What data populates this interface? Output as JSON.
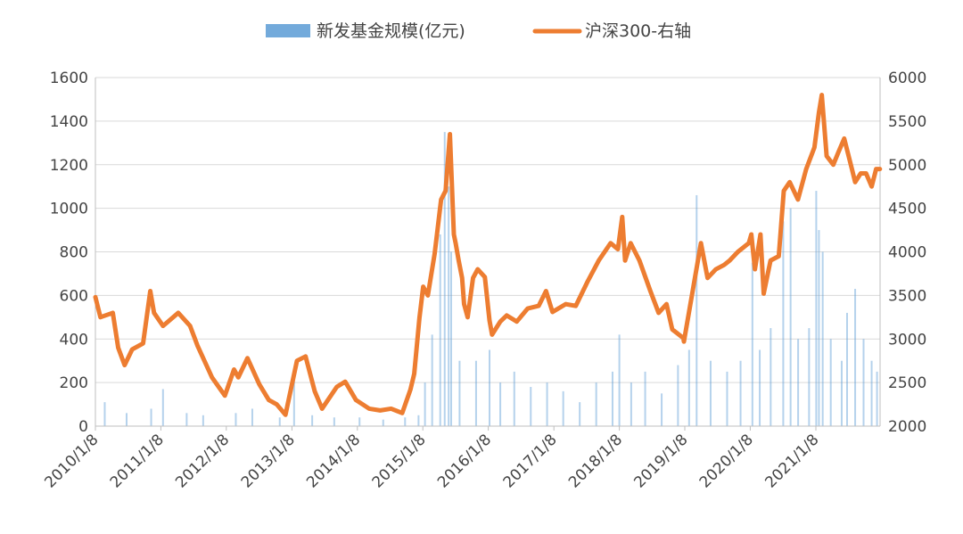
{
  "chart_data": {
    "type": "bar",
    "title": "",
    "colors": {
      "bar": "#5b9bd5",
      "line": "#ed7d31"
    },
    "legend": [
      {
        "label": "新发基金规模(亿元)",
        "kind": "bar"
      },
      {
        "label": "沪深300-右轴",
        "kind": "line"
      }
    ],
    "legend_position": "top-center",
    "grid": true,
    "x_range": [
      "2010-01-08",
      "2022-01-01"
    ],
    "x_ticks": [
      "2010/1/8",
      "2011/1/8",
      "2012/1/8",
      "2013/1/8",
      "2014/1/8",
      "2015/1/8",
      "2016/1/8",
      "2017/1/8",
      "2018/1/8",
      "2019/1/8",
      "2020/1/8",
      "2021/1/8"
    ],
    "y_left": {
      "min": 0,
      "max": 1600,
      "ticks": [
        "0",
        "200",
        "400",
        "600",
        "800",
        "1000",
        "1200",
        "1400",
        "1600"
      ]
    },
    "y_right": {
      "min": 2000,
      "max": 6000,
      "ticks": [
        "2000",
        "2500",
        "3000",
        "3500",
        "4000",
        "4500",
        "5000",
        "5500",
        "6000"
      ]
    },
    "series": [
      {
        "name": "新发基金规模(亿元)",
        "type": "bar",
        "axis": "left",
        "x": [
          "2010-03-01",
          "2010-07-01",
          "2010-11-15",
          "2011-01-20",
          "2011-06-01",
          "2011-09-01",
          "2012-03-01",
          "2012-06-01",
          "2012-11-01",
          "2013-01-20",
          "2013-05-01",
          "2013-09-01",
          "2014-01-20",
          "2014-06-01",
          "2014-10-01",
          "2014-12-15",
          "2015-01-20",
          "2015-03-01",
          "2015-04-15",
          "2015-05-10",
          "2015-06-01",
          "2015-06-15",
          "2015-08-01",
          "2015-11-01",
          "2016-01-15",
          "2016-03-15",
          "2016-06-01",
          "2016-09-01",
          "2016-12-01",
          "2017-03-01",
          "2017-06-01",
          "2017-09-01",
          "2017-12-01",
          "2018-01-08",
          "2018-03-15",
          "2018-06-01",
          "2018-09-01",
          "2018-12-01",
          "2019-02-01",
          "2019-03-15",
          "2019-06-01",
          "2019-09-01",
          "2019-11-15",
          "2020-01-20",
          "2020-03-01",
          "2020-05-01",
          "2020-07-10",
          "2020-08-20",
          "2020-10-01",
          "2020-12-01",
          "2021-01-10",
          "2021-01-25",
          "2021-02-15",
          "2021-04-01",
          "2021-06-01",
          "2021-07-01",
          "2021-08-15",
          "2021-10-01",
          "2021-11-15",
          "2021-12-15"
        ],
        "values": [
          110,
          60,
          80,
          170,
          60,
          50,
          60,
          80,
          40,
          260,
          50,
          40,
          40,
          30,
          40,
          50,
          200,
          420,
          880,
          1350,
          1100,
          800,
          300,
          300,
          350,
          200,
          250,
          180,
          200,
          160,
          110,
          200,
          250,
          420,
          200,
          250,
          150,
          280,
          350,
          1060,
          300,
          250,
          300,
          750,
          350,
          450,
          940,
          1000,
          400,
          450,
          1080,
          900,
          800,
          400,
          300,
          520,
          630,
          400,
          300,
          250
        ]
      },
      {
        "name": "沪深300-右轴",
        "type": "line",
        "axis": "right",
        "x": [
          "2010-01-08",
          "2010-02-05",
          "2010-04-15",
          "2010-05-15",
          "2010-06-20",
          "2010-08-01",
          "2010-10-01",
          "2010-11-10",
          "2010-12-01",
          "2011-01-20",
          "2011-04-15",
          "2011-06-20",
          "2011-08-01",
          "2011-10-20",
          "2011-12-31",
          "2012-02-20",
          "2012-03-15",
          "2012-05-05",
          "2012-07-10",
          "2012-09-01",
          "2012-10-15",
          "2012-12-03",
          "2013-02-05",
          "2013-03-25",
          "2013-05-15",
          "2013-06-25",
          "2013-09-15",
          "2013-11-01",
          "2013-12-31",
          "2014-03-15",
          "2014-05-15",
          "2014-07-15",
          "2014-09-15",
          "2014-10-31",
          "2014-11-21",
          "2014-12-20",
          "2015-01-10",
          "2015-02-05",
          "2015-03-15",
          "2015-04-20",
          "2015-05-15",
          "2015-06-08",
          "2015-06-30",
          "2015-07-10",
          "2015-07-27",
          "2015-08-15",
          "2015-08-26",
          "2015-09-15",
          "2015-10-15",
          "2015-11-10",
          "2015-12-20",
          "2016-01-15",
          "2016-01-29",
          "2016-03-15",
          "2016-04-20",
          "2016-06-15",
          "2016-08-15",
          "2016-10-15",
          "2016-11-25",
          "2016-12-31",
          "2017-03-15",
          "2017-05-10",
          "2017-07-15",
          "2017-09-15",
          "2017-11-20",
          "2017-12-31",
          "2018-01-24",
          "2018-02-09",
          "2018-03-12",
          "2018-04-30",
          "2018-06-30",
          "2018-08-15",
          "2018-09-28",
          "2018-10-30",
          "2018-12-31",
          "2019-01-03",
          "2019-02-25",
          "2019-04-08",
          "2019-05-15",
          "2019-06-30",
          "2019-08-15",
          "2019-09-15",
          "2019-10-31",
          "2019-12-31",
          "2020-01-14",
          "2020-02-03",
          "2020-03-05",
          "2020-03-23",
          "2020-04-30",
          "2020-06-15",
          "2020-07-13",
          "2020-08-15",
          "2020-09-30",
          "2020-11-15",
          "2020-12-31",
          "2021-01-25",
          "2021-02-10",
          "2021-03-09",
          "2021-04-15",
          "2021-05-15",
          "2021-06-15",
          "2021-07-28",
          "2021-08-15",
          "2021-09-15",
          "2021-10-15",
          "2021-11-15",
          "2021-12-10",
          "2021-12-31"
        ],
        "values": [
          3480,
          3250,
          3300,
          2900,
          2700,
          2880,
          2950,
          3550,
          3300,
          3150,
          3300,
          3150,
          2920,
          2560,
          2350,
          2650,
          2560,
          2780,
          2480,
          2300,
          2250,
          2130,
          2750,
          2800,
          2400,
          2200,
          2450,
          2510,
          2300,
          2200,
          2180,
          2200,
          2150,
          2420,
          2600,
          3240,
          3600,
          3500,
          3980,
          4600,
          4700,
          5350,
          4200,
          4100,
          3900,
          3700,
          3400,
          3250,
          3700,
          3800,
          3710,
          3210,
          3050,
          3200,
          3270,
          3200,
          3350,
          3380,
          3550,
          3310,
          3400,
          3380,
          3660,
          3900,
          4100,
          4030,
          4400,
          3900,
          4100,
          3900,
          3550,
          3300,
          3400,
          3110,
          3010,
          2970,
          3600,
          4100,
          3700,
          3800,
          3850,
          3900,
          4000,
          4100,
          4200,
          3800,
          4200,
          3520,
          3900,
          3950,
          4700,
          4800,
          4600,
          4950,
          5200,
          5600,
          5800,
          5100,
          5000,
          5150,
          5300,
          4950,
          4800,
          4900,
          4900,
          4750,
          4950,
          4950
        ]
      }
    ]
  }
}
